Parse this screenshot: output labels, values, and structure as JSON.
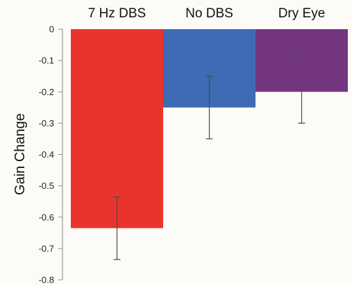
{
  "chart_data": {
    "type": "bar",
    "categories": [
      "7 Hz DBS",
      "No DBS",
      "Dry Eye"
    ],
    "values": [
      -0.635,
      -0.25,
      -0.2
    ],
    "error_low": [
      -0.735,
      -0.35,
      -0.3
    ],
    "error_high": [
      -0.535,
      -0.15,
      -0.1
    ],
    "colors": [
      "#e8342c",
      "#3f6ab4",
      "#74357f"
    ],
    "title": "",
    "xlabel": "",
    "ylabel": "Gain Change",
    "ylim": [
      -0.8,
      0
    ],
    "yticks": [
      0,
      -0.1,
      -0.2,
      -0.3,
      -0.4,
      -0.5,
      -0.6,
      -0.7,
      -0.8
    ],
    "ytick_labels": [
      "0",
      "-0.1",
      "-0.2",
      "-0.3",
      "-0.4",
      "-0.5",
      "-0.6",
      "-0.7",
      "-0.8"
    ],
    "category_label_position": "top",
    "grid": false,
    "legend": false
  }
}
